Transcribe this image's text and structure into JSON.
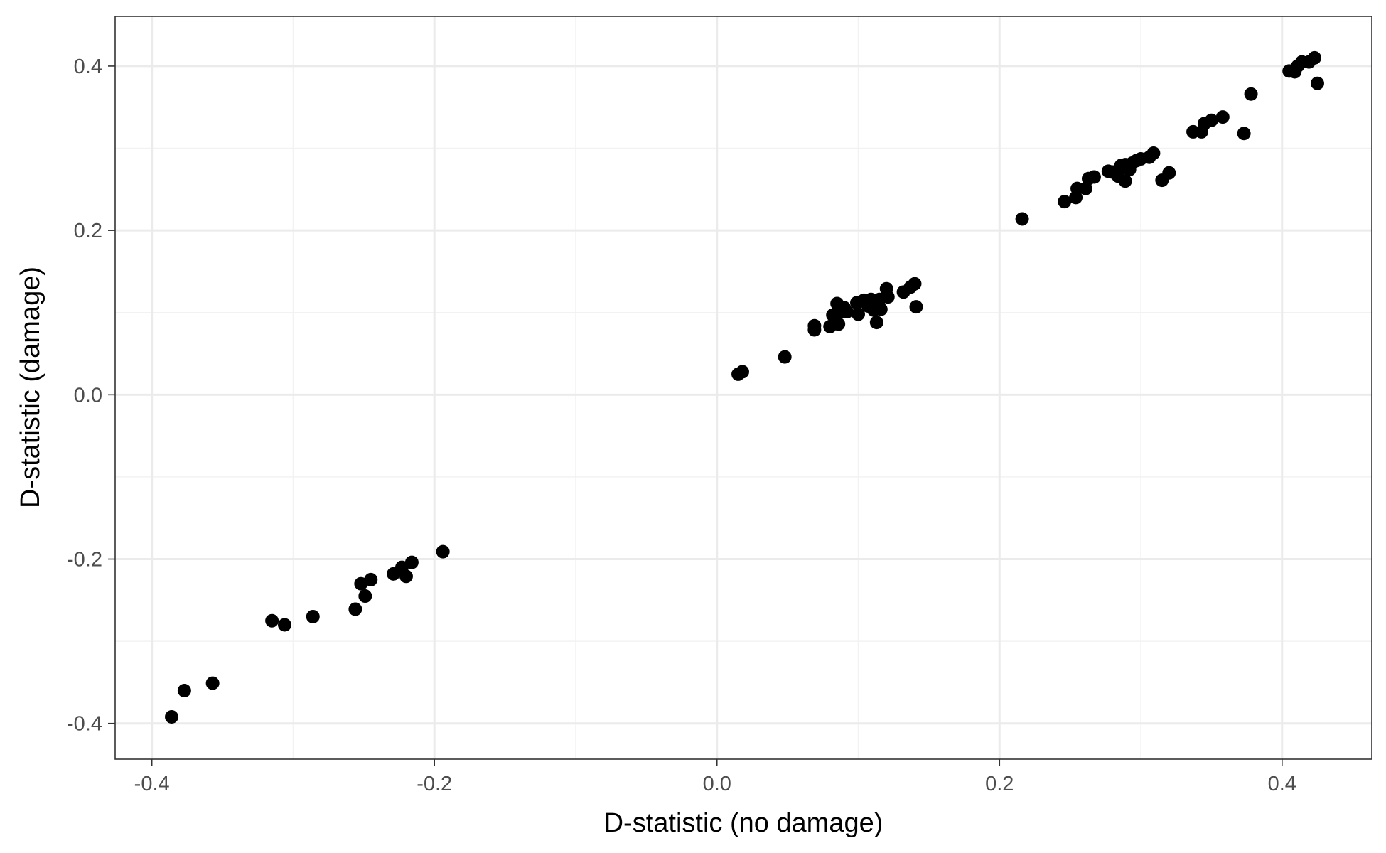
{
  "chart_data": {
    "type": "scatter",
    "xlabel": "D-statistic (no damage)",
    "ylabel": "D-statistic (damage)",
    "xlim": [
      -0.426,
      0.4635
    ],
    "ylim": [
      -0.4435,
      0.4605
    ],
    "x_ticks": [
      -0.4,
      -0.2,
      0.0,
      0.2,
      0.4
    ],
    "y_ticks": [
      -0.4,
      -0.2,
      0.0,
      0.2,
      0.4
    ],
    "x_tick_labels": [
      "-0.4",
      "-0.2",
      "0.0",
      "0.2",
      "0.4"
    ],
    "y_tick_labels": [
      "-0.4",
      "-0.2",
      "0.0",
      "0.2",
      "0.4"
    ],
    "grid": true,
    "point_color": "#000000",
    "points": [
      [
        -0.386,
        -0.392
      ],
      [
        -0.377,
        -0.36
      ],
      [
        -0.357,
        -0.351
      ],
      [
        -0.315,
        -0.275
      ],
      [
        -0.306,
        -0.28
      ],
      [
        -0.286,
        -0.27
      ],
      [
        -0.256,
        -0.261
      ],
      [
        -0.252,
        -0.23
      ],
      [
        -0.249,
        -0.245
      ],
      [
        -0.245,
        -0.225
      ],
      [
        -0.229,
        -0.218
      ],
      [
        -0.223,
        -0.21
      ],
      [
        -0.22,
        -0.221
      ],
      [
        -0.216,
        -0.204
      ],
      [
        -0.194,
        -0.191
      ],
      [
        0.015,
        0.025
      ],
      [
        0.018,
        0.028
      ],
      [
        0.048,
        0.046
      ],
      [
        0.069,
        0.079
      ],
      [
        0.069,
        0.084
      ],
      [
        0.08,
        0.083
      ],
      [
        0.082,
        0.097
      ],
      [
        0.085,
        0.111
      ],
      [
        0.086,
        0.086
      ],
      [
        0.088,
        0.101
      ],
      [
        0.09,
        0.106
      ],
      [
        0.092,
        0.101
      ],
      [
        0.099,
        0.112
      ],
      [
        0.1,
        0.098
      ],
      [
        0.104,
        0.115
      ],
      [
        0.107,
        0.108
      ],
      [
        0.109,
        0.116
      ],
      [
        0.111,
        0.103
      ],
      [
        0.113,
        0.088
      ],
      [
        0.113,
        0.112
      ],
      [
        0.115,
        0.116
      ],
      [
        0.116,
        0.104
      ],
      [
        0.12,
        0.129
      ],
      [
        0.121,
        0.119
      ],
      [
        0.132,
        0.125
      ],
      [
        0.137,
        0.131
      ],
      [
        0.14,
        0.135
      ],
      [
        0.141,
        0.107
      ],
      [
        0.216,
        0.214
      ],
      [
        0.246,
        0.235
      ],
      [
        0.254,
        0.24
      ],
      [
        0.255,
        0.251
      ],
      [
        0.261,
        0.251
      ],
      [
        0.263,
        0.263
      ],
      [
        0.267,
        0.265
      ],
      [
        0.277,
        0.272
      ],
      [
        0.28,
        0.271
      ],
      [
        0.284,
        0.266
      ],
      [
        0.286,
        0.279
      ],
      [
        0.289,
        0.26
      ],
      [
        0.289,
        0.28
      ],
      [
        0.292,
        0.274
      ],
      [
        0.294,
        0.282
      ],
      [
        0.297,
        0.285
      ],
      [
        0.3,
        0.287
      ],
      [
        0.306,
        0.289
      ],
      [
        0.309,
        0.294
      ],
      [
        0.315,
        0.261
      ],
      [
        0.32,
        0.27
      ],
      [
        0.337,
        0.32
      ],
      [
        0.343,
        0.32
      ],
      [
        0.345,
        0.33
      ],
      [
        0.35,
        0.334
      ],
      [
        0.358,
        0.338
      ],
      [
        0.373,
        0.318
      ],
      [
        0.378,
        0.366
      ],
      [
        0.405,
        0.394
      ],
      [
        0.409,
        0.393
      ],
      [
        0.411,
        0.4
      ],
      [
        0.414,
        0.405
      ],
      [
        0.419,
        0.405
      ],
      [
        0.423,
        0.41
      ],
      [
        0.425,
        0.379
      ]
    ]
  }
}
